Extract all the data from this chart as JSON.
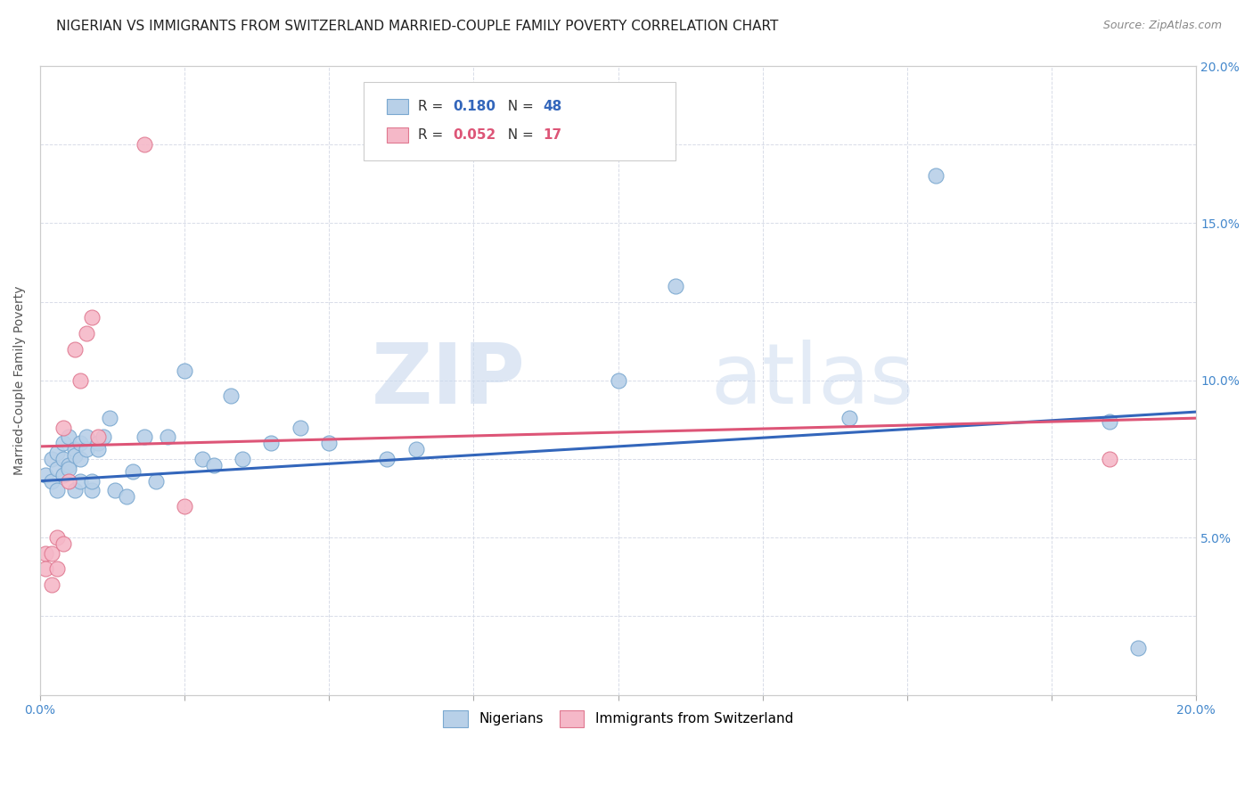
{
  "title": "NIGERIAN VS IMMIGRANTS FROM SWITZERLAND MARRIED-COUPLE FAMILY POVERTY CORRELATION CHART",
  "source": "Source: ZipAtlas.com",
  "ylabel": "Married-Couple Family Poverty",
  "xlim": [
    0.0,
    0.2
  ],
  "ylim": [
    0.0,
    0.2
  ],
  "xticks": [
    0.0,
    0.025,
    0.05,
    0.075,
    0.1,
    0.125,
    0.15,
    0.175,
    0.2
  ],
  "yticks": [
    0.0,
    0.025,
    0.05,
    0.075,
    0.1,
    0.125,
    0.15,
    0.175,
    0.2
  ],
  "blue_color": "#b8d0e8",
  "blue_edge_color": "#7aa8d0",
  "pink_color": "#f5b8c8",
  "pink_edge_color": "#e07890",
  "blue_line_color": "#3366bb",
  "pink_line_color": "#dd5577",
  "watermark_zip": "ZIP",
  "watermark_atlas": "atlas",
  "blue_r": "0.180",
  "blue_n": "48",
  "pink_r": "0.052",
  "pink_n": "17",
  "blue_label": "Nigerians",
  "pink_label": "Immigrants from Switzerland",
  "blue_points_x": [
    0.001,
    0.002,
    0.002,
    0.003,
    0.003,
    0.003,
    0.004,
    0.004,
    0.004,
    0.005,
    0.005,
    0.005,
    0.006,
    0.006,
    0.006,
    0.007,
    0.007,
    0.007,
    0.008,
    0.008,
    0.009,
    0.009,
    0.01,
    0.01,
    0.011,
    0.012,
    0.013,
    0.015,
    0.016,
    0.018,
    0.02,
    0.022,
    0.025,
    0.028,
    0.03,
    0.033,
    0.035,
    0.04,
    0.045,
    0.05,
    0.06,
    0.065,
    0.1,
    0.11,
    0.14,
    0.155,
    0.185,
    0.19
  ],
  "blue_points_y": [
    0.07,
    0.075,
    0.068,
    0.072,
    0.077,
    0.065,
    0.08,
    0.075,
    0.07,
    0.073,
    0.082,
    0.072,
    0.078,
    0.076,
    0.065,
    0.075,
    0.068,
    0.08,
    0.078,
    0.082,
    0.065,
    0.068,
    0.08,
    0.078,
    0.082,
    0.088,
    0.065,
    0.063,
    0.071,
    0.082,
    0.068,
    0.082,
    0.103,
    0.075,
    0.073,
    0.095,
    0.075,
    0.08,
    0.085,
    0.08,
    0.075,
    0.078,
    0.1,
    0.13,
    0.088,
    0.165,
    0.087,
    0.015
  ],
  "pink_points_x": [
    0.001,
    0.001,
    0.002,
    0.002,
    0.003,
    0.003,
    0.004,
    0.004,
    0.005,
    0.006,
    0.007,
    0.008,
    0.009,
    0.01,
    0.018,
    0.025,
    0.185
  ],
  "pink_points_y": [
    0.045,
    0.04,
    0.035,
    0.045,
    0.05,
    0.04,
    0.085,
    0.048,
    0.068,
    0.11,
    0.1,
    0.115,
    0.12,
    0.082,
    0.175,
    0.06,
    0.075
  ],
  "blue_trend_x0": 0.0,
  "blue_trend_x1": 0.2,
  "blue_trend_y0": 0.068,
  "blue_trend_y1": 0.09,
  "pink_trend_x0": 0.0,
  "pink_trend_x1": 0.2,
  "pink_trend_y0": 0.079,
  "pink_trend_y1": 0.088,
  "background_color": "#ffffff",
  "grid_color": "#d8dce8",
  "title_fontsize": 11,
  "axis_label_fontsize": 10,
  "tick_fontsize": 10,
  "legend_fontsize": 11,
  "source_fontsize": 9
}
